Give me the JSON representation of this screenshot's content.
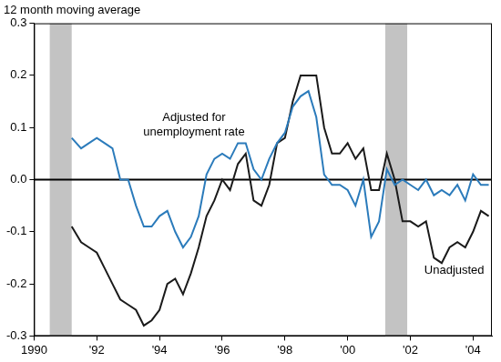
{
  "chart_data": {
    "type": "line",
    "y_label": "12 month moving average",
    "x": [
      1991.2,
      1991.5,
      1991.75,
      1992.0,
      1992.25,
      1992.5,
      1992.75,
      1993.0,
      1993.25,
      1993.5,
      1993.75,
      1994.0,
      1994.25,
      1994.5,
      1994.75,
      1995.0,
      1995.25,
      1995.5,
      1995.75,
      1996.0,
      1996.25,
      1996.5,
      1996.75,
      1997.0,
      1997.25,
      1997.5,
      1997.75,
      1998.0,
      1998.25,
      1998.5,
      1998.75,
      1999.0,
      1999.25,
      1999.5,
      1999.75,
      2000.0,
      2000.25,
      2000.5,
      2000.75,
      2001.0,
      2001.25,
      2001.5,
      2001.75,
      2002.0,
      2002.25,
      2002.5,
      2002.75,
      2003.0,
      2003.25,
      2003.5,
      2003.75,
      2004.0,
      2004.25,
      2004.5
    ],
    "series": [
      {
        "name": "Adjusted for unemployment rate",
        "color": "#2b7bbb",
        "values": [
          0.08,
          0.06,
          0.07,
          0.08,
          0.07,
          0.06,
          0.0,
          0.0,
          -0.05,
          -0.09,
          -0.09,
          -0.07,
          -0.06,
          -0.1,
          -0.13,
          -0.11,
          -0.07,
          0.01,
          0.04,
          0.05,
          0.04,
          0.07,
          0.07,
          0.02,
          0.0,
          0.04,
          0.07,
          0.09,
          0.14,
          0.16,
          0.17,
          0.12,
          0.01,
          -0.01,
          -0.01,
          -0.02,
          -0.05,
          0.0,
          -0.11,
          -0.08,
          0.02,
          -0.01,
          0.0,
          -0.01,
          -0.02,
          0.0,
          -0.03,
          -0.02,
          -0.03,
          -0.01,
          -0.04,
          0.01,
          -0.01,
          -0.01
        ]
      },
      {
        "name": "Unadjusted",
        "color": "#1a1a1a",
        "values": [
          -0.09,
          -0.12,
          -0.13,
          -0.14,
          -0.17,
          -0.2,
          -0.23,
          -0.24,
          -0.25,
          -0.28,
          -0.27,
          -0.25,
          -0.2,
          -0.19,
          -0.22,
          -0.18,
          -0.13,
          -0.07,
          -0.04,
          0.0,
          -0.02,
          0.03,
          0.05,
          -0.04,
          -0.05,
          -0.01,
          0.07,
          0.08,
          0.15,
          0.2,
          0.2,
          0.2,
          0.1,
          0.05,
          0.05,
          0.07,
          0.04,
          0.06,
          -0.02,
          -0.02,
          0.05,
          0.0,
          -0.08,
          -0.08,
          -0.09,
          -0.08,
          -0.15,
          -0.16,
          -0.13,
          -0.12,
          -0.13,
          -0.1,
          -0.06,
          -0.07
        ]
      }
    ],
    "annotations": [
      {
        "lines": [
          "Adjusted for",
          "unemployment rate"
        ],
        "x": 1995.1,
        "y": 0.105
      },
      {
        "lines": [
          "Unadjusted"
        ],
        "x": 2003.4,
        "y": -0.175
      }
    ],
    "recessions": [
      [
        1990.5,
        1991.2
      ],
      [
        2001.2,
        2001.9
      ]
    ],
    "hline": 0,
    "xlim": [
      1990,
      2004.6
    ],
    "xticks": [
      {
        "value": 1990,
        "label": "1990"
      },
      {
        "value": 1992,
        "label": "'92"
      },
      {
        "value": 1994,
        "label": "'94"
      },
      {
        "value": 1996,
        "label": "'96"
      },
      {
        "value": 1998,
        "label": "'98"
      },
      {
        "value": 2000,
        "label": "'00"
      },
      {
        "value": 2002,
        "label": "'02"
      },
      {
        "value": 2004,
        "label": "'04"
      }
    ],
    "ylim": [
      -0.3,
      0.3
    ],
    "yticks": [
      -0.3,
      -0.2,
      -0.1,
      {
        "value": 0,
        "label": "0.0"
      },
      0.1,
      0.2,
      0.3
    ],
    "grid": false
  }
}
